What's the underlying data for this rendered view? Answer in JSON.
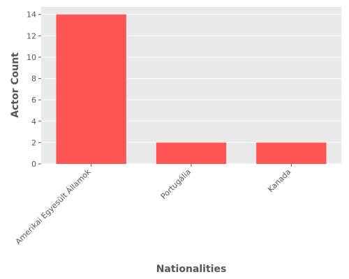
{
  "chart_data": {
    "type": "bar",
    "title": "",
    "xlabel": "Nationalities",
    "ylabel": "Actor Count",
    "categories": [
      "Amerikai Egyesült Államok",
      "Portugália",
      "Kanada"
    ],
    "values": [
      14,
      2,
      2
    ],
    "ylim": [
      0,
      14.7
    ],
    "yticks": [
      "0",
      "2",
      "4",
      "6",
      "8",
      "10",
      "12",
      "14"
    ],
    "grid": true,
    "legend": "none",
    "colors": {
      "bar": "#ff5555",
      "plot_background": "#e9e9e9",
      "grid": "#ffffff",
      "text": "#555555"
    }
  }
}
